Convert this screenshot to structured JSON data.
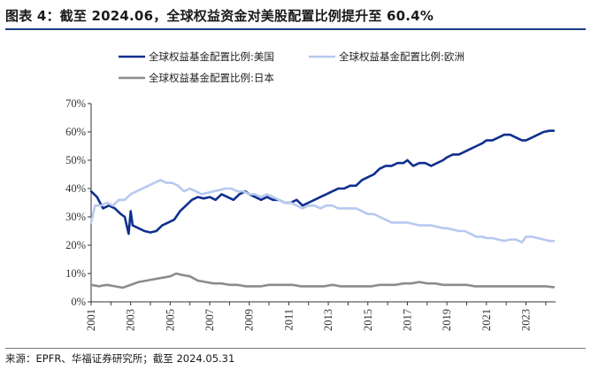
{
  "title": "图表 4：截至 2024.06，全球权益资金对美股配置比例提升至 60.4%",
  "source": "来源：EPFR、华福证券研究所；截至 2024.05.31",
  "chart_data": {
    "type": "line",
    "title": "图表 4：截至 2024.06，全球权益资金对美股配置比例提升至 60.4%",
    "ylim": [
      0,
      70
    ],
    "xlim": [
      2001,
      2024.5
    ],
    "yticks": [
      0,
      10,
      20,
      30,
      40,
      50,
      60,
      70
    ],
    "ytick_labels": [
      "0%",
      "10%",
      "20%",
      "30%",
      "40%",
      "50%",
      "60%",
      "70%"
    ],
    "xticks": [
      2001,
      2003,
      2005,
      2007,
      2009,
      2011,
      2013,
      2015,
      2017,
      2019,
      2021,
      2023
    ],
    "xtick_labels": [
      "2001",
      "2003",
      "2005",
      "2007",
      "2009",
      "2011",
      "2013",
      "2015",
      "2017",
      "2019",
      "2021",
      "2023"
    ],
    "grid": false,
    "legend_position": "top",
    "series": [
      {
        "name": "全球权益基金配置比例:美国",
        "color": "#0f2f8f",
        "points": [
          [
            2001.0,
            39
          ],
          [
            2001.3,
            37
          ],
          [
            2001.6,
            33
          ],
          [
            2001.9,
            34
          ],
          [
            2002.2,
            33
          ],
          [
            2002.5,
            31
          ],
          [
            2002.7,
            30
          ],
          [
            2002.9,
            24
          ],
          [
            2003.0,
            32
          ],
          [
            2003.1,
            27
          ],
          [
            2003.4,
            26
          ],
          [
            2003.7,
            25
          ],
          [
            2004.0,
            24.5
          ],
          [
            2004.3,
            25
          ],
          [
            2004.6,
            27
          ],
          [
            2004.9,
            28
          ],
          [
            2005.2,
            29
          ],
          [
            2005.5,
            32
          ],
          [
            2005.8,
            34
          ],
          [
            2006.1,
            36
          ],
          [
            2006.4,
            37
          ],
          [
            2006.7,
            36.5
          ],
          [
            2007.0,
            37
          ],
          [
            2007.3,
            36
          ],
          [
            2007.6,
            38
          ],
          [
            2007.9,
            37
          ],
          [
            2008.2,
            36
          ],
          [
            2008.5,
            38
          ],
          [
            2008.8,
            39
          ],
          [
            2009.0,
            38
          ],
          [
            2009.3,
            37
          ],
          [
            2009.6,
            36
          ],
          [
            2009.9,
            37
          ],
          [
            2010.2,
            36
          ],
          [
            2010.5,
            36
          ],
          [
            2010.8,
            35
          ],
          [
            2011.1,
            35
          ],
          [
            2011.4,
            36
          ],
          [
            2011.7,
            34
          ],
          [
            2012.0,
            35
          ],
          [
            2012.3,
            36
          ],
          [
            2012.6,
            37
          ],
          [
            2012.9,
            38
          ],
          [
            2013.2,
            39
          ],
          [
            2013.5,
            40
          ],
          [
            2013.8,
            40
          ],
          [
            2014.1,
            41
          ],
          [
            2014.4,
            41
          ],
          [
            2014.7,
            43
          ],
          [
            2015.0,
            44
          ],
          [
            2015.3,
            45
          ],
          [
            2015.6,
            47
          ],
          [
            2015.9,
            48
          ],
          [
            2016.2,
            48
          ],
          [
            2016.5,
            49
          ],
          [
            2016.8,
            49
          ],
          [
            2017.0,
            50
          ],
          [
            2017.3,
            48
          ],
          [
            2017.6,
            49
          ],
          [
            2017.9,
            49
          ],
          [
            2018.2,
            48
          ],
          [
            2018.5,
            49
          ],
          [
            2018.8,
            50
          ],
          [
            2019.0,
            51
          ],
          [
            2019.3,
            52
          ],
          [
            2019.6,
            52
          ],
          [
            2019.9,
            53
          ],
          [
            2020.2,
            54
          ],
          [
            2020.5,
            55
          ],
          [
            2020.8,
            56
          ],
          [
            2021.0,
            57
          ],
          [
            2021.3,
            57
          ],
          [
            2021.6,
            58
          ],
          [
            2021.9,
            59
          ],
          [
            2022.2,
            59
          ],
          [
            2022.5,
            58
          ],
          [
            2022.8,
            57
          ],
          [
            2023.0,
            57
          ],
          [
            2023.3,
            58
          ],
          [
            2023.6,
            59
          ],
          [
            2023.9,
            60
          ],
          [
            2024.2,
            60.4
          ],
          [
            2024.4,
            60.4
          ]
        ]
      },
      {
        "name": "全球权益基金配置比例:欧洲",
        "color": "#b7c9ef",
        "points": [
          [
            2001.0,
            28
          ],
          [
            2001.2,
            34
          ],
          [
            2001.5,
            34
          ],
          [
            2001.8,
            35
          ],
          [
            2002.1,
            34
          ],
          [
            2002.4,
            36
          ],
          [
            2002.7,
            36
          ],
          [
            2003.0,
            38
          ],
          [
            2003.3,
            39
          ],
          [
            2003.6,
            40
          ],
          [
            2003.9,
            41
          ],
          [
            2004.2,
            42
          ],
          [
            2004.5,
            43
          ],
          [
            2004.8,
            42
          ],
          [
            2005.1,
            42
          ],
          [
            2005.4,
            41
          ],
          [
            2005.7,
            39
          ],
          [
            2006.0,
            40
          ],
          [
            2006.3,
            39
          ],
          [
            2006.6,
            38
          ],
          [
            2006.9,
            38.5
          ],
          [
            2007.2,
            39
          ],
          [
            2007.5,
            39.5
          ],
          [
            2007.8,
            40
          ],
          [
            2008.1,
            40
          ],
          [
            2008.4,
            39
          ],
          [
            2008.7,
            39
          ],
          [
            2009.0,
            38
          ],
          [
            2009.3,
            38
          ],
          [
            2009.6,
            37
          ],
          [
            2009.9,
            38
          ],
          [
            2010.2,
            37
          ],
          [
            2010.5,
            36
          ],
          [
            2010.8,
            35
          ],
          [
            2011.1,
            35
          ],
          [
            2011.4,
            34
          ],
          [
            2011.7,
            33
          ],
          [
            2012.0,
            34
          ],
          [
            2012.3,
            34
          ],
          [
            2012.6,
            33
          ],
          [
            2012.9,
            34
          ],
          [
            2013.2,
            34
          ],
          [
            2013.5,
            33
          ],
          [
            2013.8,
            33
          ],
          [
            2014.1,
            33
          ],
          [
            2014.4,
            33
          ],
          [
            2014.7,
            32
          ],
          [
            2015.0,
            31
          ],
          [
            2015.3,
            31
          ],
          [
            2015.6,
            30
          ],
          [
            2015.9,
            29
          ],
          [
            2016.2,
            28
          ],
          [
            2016.5,
            28
          ],
          [
            2016.8,
            28
          ],
          [
            2017.0,
            28
          ],
          [
            2017.3,
            27.5
          ],
          [
            2017.6,
            27
          ],
          [
            2017.9,
            27
          ],
          [
            2018.2,
            27
          ],
          [
            2018.5,
            26.5
          ],
          [
            2018.8,
            26
          ],
          [
            2019.0,
            26
          ],
          [
            2019.3,
            25.5
          ],
          [
            2019.6,
            25
          ],
          [
            2019.9,
            25
          ],
          [
            2020.2,
            24
          ],
          [
            2020.5,
            23
          ],
          [
            2020.8,
            23
          ],
          [
            2021.0,
            22.5
          ],
          [
            2021.3,
            22.5
          ],
          [
            2021.6,
            22
          ],
          [
            2021.9,
            21.5
          ],
          [
            2022.2,
            22
          ],
          [
            2022.5,
            22
          ],
          [
            2022.8,
            21
          ],
          [
            2023.0,
            23
          ],
          [
            2023.3,
            23
          ],
          [
            2023.6,
            22.5
          ],
          [
            2023.9,
            22
          ],
          [
            2024.2,
            21.5
          ],
          [
            2024.4,
            21.5
          ]
        ]
      },
      {
        "name": "全球权益基金配置比例:日本",
        "color": "#8c8c8c",
        "points": [
          [
            2001.0,
            6
          ],
          [
            2001.4,
            5.5
          ],
          [
            2001.8,
            6
          ],
          [
            2002.2,
            5.5
          ],
          [
            2002.6,
            5
          ],
          [
            2003.0,
            6
          ],
          [
            2003.4,
            7
          ],
          [
            2003.8,
            7.5
          ],
          [
            2004.2,
            8
          ],
          [
            2004.6,
            8.5
          ],
          [
            2005.0,
            9
          ],
          [
            2005.3,
            10
          ],
          [
            2005.6,
            9.5
          ],
          [
            2006.0,
            9
          ],
          [
            2006.4,
            7.5
          ],
          [
            2006.8,
            7
          ],
          [
            2007.2,
            6.5
          ],
          [
            2007.6,
            6.5
          ],
          [
            2008.0,
            6
          ],
          [
            2008.4,
            6
          ],
          [
            2008.8,
            5.5
          ],
          [
            2009.2,
            5.5
          ],
          [
            2009.6,
            5.5
          ],
          [
            2010.0,
            6
          ],
          [
            2010.4,
            6
          ],
          [
            2010.8,
            6
          ],
          [
            2011.2,
            6
          ],
          [
            2011.6,
            5.5
          ],
          [
            2012.0,
            5.5
          ],
          [
            2012.4,
            5.5
          ],
          [
            2012.8,
            5.5
          ],
          [
            2013.2,
            6
          ],
          [
            2013.6,
            5.5
          ],
          [
            2014.0,
            5.5
          ],
          [
            2014.4,
            5.5
          ],
          [
            2014.8,
            5.5
          ],
          [
            2015.2,
            5.5
          ],
          [
            2015.6,
            6
          ],
          [
            2016.0,
            6
          ],
          [
            2016.4,
            6
          ],
          [
            2016.8,
            6.5
          ],
          [
            2017.2,
            6.5
          ],
          [
            2017.6,
            7
          ],
          [
            2018.0,
            6.5
          ],
          [
            2018.4,
            6.5
          ],
          [
            2018.8,
            6
          ],
          [
            2019.2,
            6
          ],
          [
            2019.6,
            6
          ],
          [
            2020.0,
            6
          ],
          [
            2020.4,
            5.5
          ],
          [
            2020.8,
            5.5
          ],
          [
            2021.2,
            5.5
          ],
          [
            2021.6,
            5.5
          ],
          [
            2022.0,
            5.5
          ],
          [
            2022.4,
            5.5
          ],
          [
            2022.8,
            5.5
          ],
          [
            2023.2,
            5.5
          ],
          [
            2023.6,
            5.5
          ],
          [
            2024.0,
            5.5
          ],
          [
            2024.4,
            5.2
          ]
        ]
      }
    ]
  }
}
